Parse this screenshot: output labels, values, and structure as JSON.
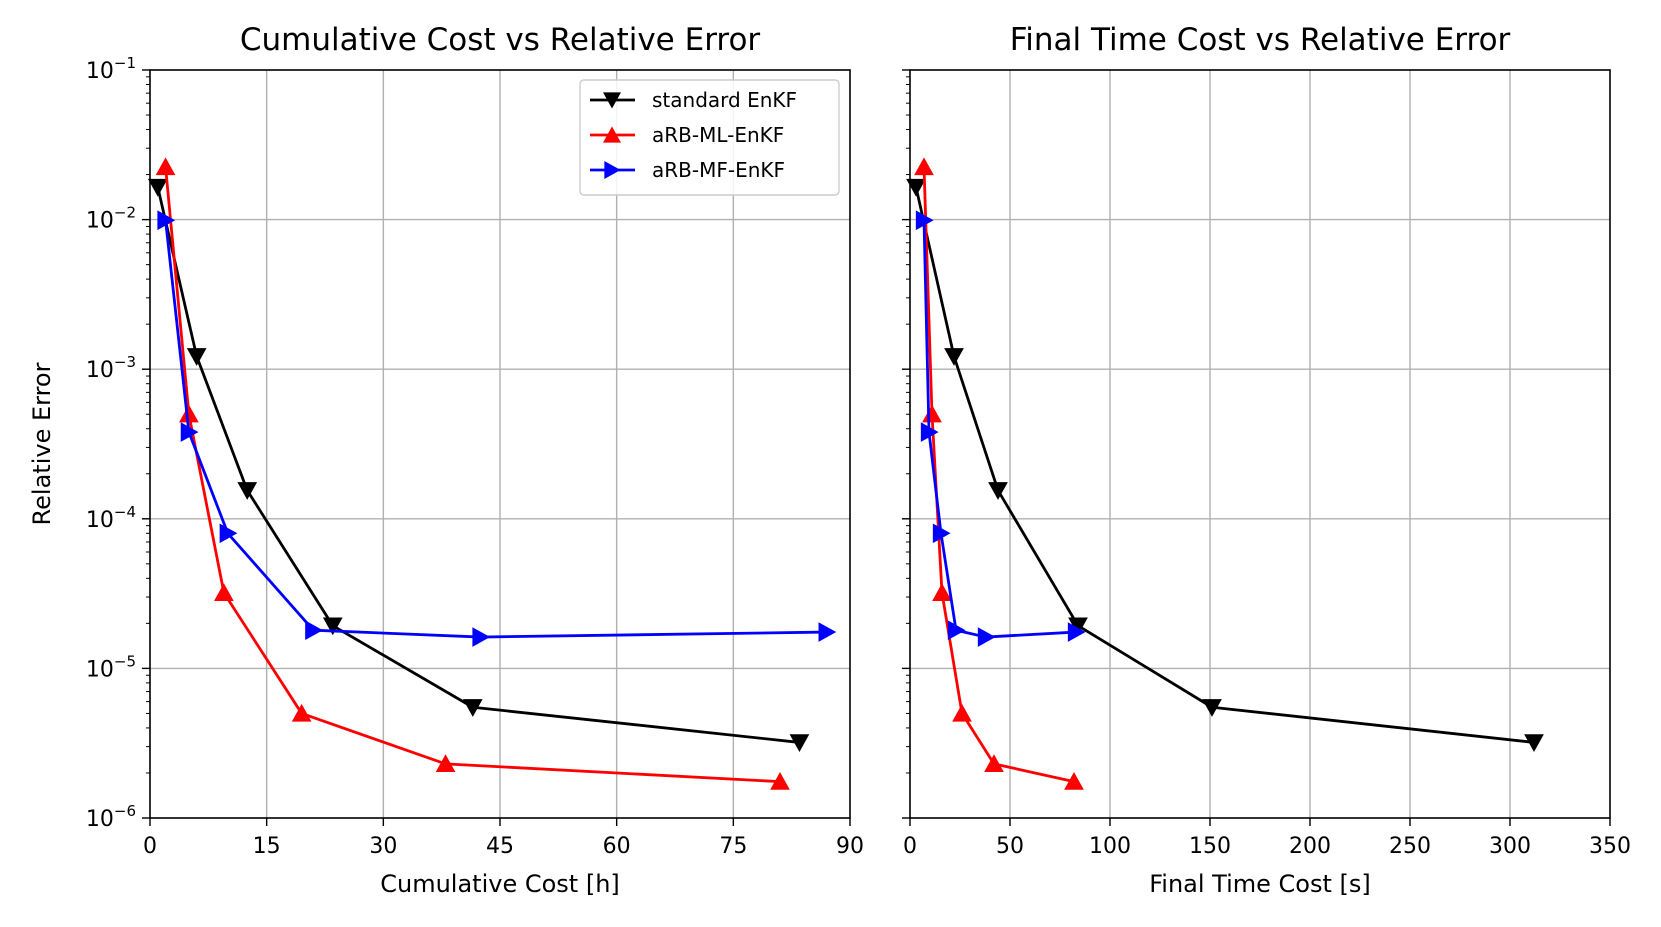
{
  "chart_data": [
    {
      "type": "line",
      "title": "Cumulative Cost vs Relative Error",
      "xlabel": "Cumulative Cost  [h]",
      "ylabel": "Relative Error",
      "xlim": [
        0,
        90
      ],
      "ylim": [
        1e-06,
        0.1
      ],
      "yscale": "log",
      "grid": true,
      "legend": "top-right",
      "xticks": [
        0,
        15,
        30,
        45,
        60,
        75,
        90
      ],
      "xtick_labels": [
        "0",
        "15",
        "30",
        "45",
        "60",
        "75",
        "90"
      ],
      "yticks": [
        1e-06,
        1e-05,
        0.0001,
        0.001,
        0.01,
        0.1
      ],
      "ytick_labels": [
        {
          "base": "10",
          "exp": "−6"
        },
        {
          "base": "10",
          "exp": "−5"
        },
        {
          "base": "10",
          "exp": "−4"
        },
        {
          "base": "10",
          "exp": "−3"
        },
        {
          "base": "10",
          "exp": "−2"
        },
        {
          "base": "10",
          "exp": "−1"
        }
      ],
      "series": [
        {
          "name": "standard EnKF",
          "color": "#000000",
          "marker": "triangle-down",
          "x": [
            1.0,
            6.0,
            12.5,
            23.5,
            41.5,
            83.5
          ],
          "y": [
            0.0165,
            0.00122,
            0.000155,
            1.93e-05,
            5.5e-06,
            3.2e-06
          ]
        },
        {
          "name": "aRB-ML-EnKF",
          "color": "#ff0000",
          "marker": "triangle-up",
          "x": [
            2.0,
            5.0,
            9.5,
            19.5,
            38.0,
            81.0
          ],
          "y": [
            0.0225,
            0.0005,
            3.2e-05,
            5e-06,
            2.3e-06,
            1.75e-06
          ]
        },
        {
          "name": "aRB-MF-EnKF",
          "color": "#0000ff",
          "marker": "triangle-right",
          "x": [
            2.0,
            5.0,
            10.0,
            21.0,
            42.5,
            87.0
          ],
          "y": [
            0.0099,
            0.00038,
            8e-05,
            1.8e-05,
            1.62e-05,
            1.75e-05
          ]
        }
      ]
    },
    {
      "type": "line",
      "title": "Final Time Cost vs Relative Error",
      "xlabel": "Final Time Cost  [s]",
      "ylabel": "",
      "xlim": [
        0,
        350
      ],
      "ylim": [
        1e-06,
        0.1
      ],
      "yscale": "log",
      "grid": true,
      "xticks": [
        0,
        50,
        100,
        150,
        200,
        250,
        300,
        350
      ],
      "xtick_labels": [
        "0",
        "50",
        "100",
        "150",
        "200",
        "250",
        "300",
        "350"
      ],
      "yticks": [
        1e-06,
        1e-05,
        0.0001,
        0.001,
        0.01,
        0.1
      ],
      "series": [
        {
          "name": "standard EnKF",
          "color": "#000000",
          "marker": "triangle-down",
          "x": [
            3.0,
            22.0,
            44.0,
            84.0,
            151.0,
            312.0
          ],
          "y": [
            0.0165,
            0.00122,
            0.000155,
            1.93e-05,
            5.5e-06,
            3.2e-06
          ]
        },
        {
          "name": "aRB-ML-EnKF",
          "color": "#ff0000",
          "marker": "triangle-up",
          "x": [
            7.0,
            11.0,
            16.0,
            26.0,
            42.0,
            82.0
          ],
          "y": [
            0.0225,
            0.0005,
            3.2e-05,
            5e-06,
            2.3e-06,
            1.75e-06
          ]
        },
        {
          "name": "aRB-MF-EnKF",
          "color": "#0000ff",
          "marker": "triangle-right",
          "x": [
            7.0,
            9.5,
            15.5,
            23.0,
            38.0,
            83.0
          ],
          "y": [
            0.0099,
            0.00038,
            8e-05,
            1.8e-05,
            1.62e-05,
            1.75e-05
          ]
        }
      ]
    }
  ]
}
